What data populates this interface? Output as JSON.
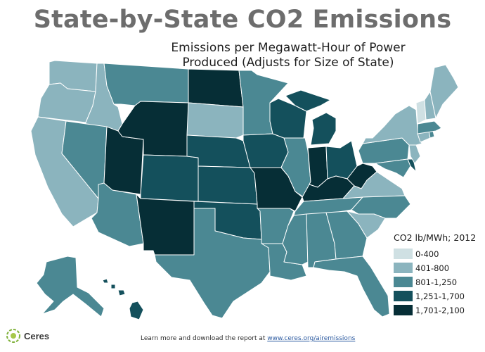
{
  "header": {
    "title": "State-by-State CO2 Emissions",
    "subtitle_line1": "Emissions per Megawatt-Hour of Power",
    "subtitle_line2": "Produced (Adjusts for Size of State)"
  },
  "legend": {
    "title": "CO2 lb/MWh; 2012",
    "items": [
      {
        "label": "0-400",
        "color": "#cfe0e3"
      },
      {
        "label": "401-800",
        "color": "#8bb4be"
      },
      {
        "label": "801-1,250",
        "color": "#4b8893"
      },
      {
        "label": "1,251-1,700",
        "color": "#14505c"
      },
      {
        "label": "1,701-2,100",
        "color": "#062e36"
      }
    ]
  },
  "map": {
    "category_colors": [
      "#cfe0e3",
      "#8bb4be",
      "#4b8893",
      "#14505c",
      "#062e36"
    ],
    "states": {
      "WA": 1,
      "OR": 1,
      "ID": 1,
      "CA": 1,
      "NV": 2,
      "AZ": 2,
      "UT": 4,
      "MT": 2,
      "WY": 4,
      "CO": 3,
      "NM": 4,
      "ND": 4,
      "SD": 1,
      "NE": 3,
      "KS": 3,
      "OK": 3,
      "TX": 2,
      "MN": 2,
      "IA": 3,
      "MO": 4,
      "AR": 2,
      "LA": 2,
      "WI": 3,
      "IL": 2,
      "IN": 4,
      "KY": 4,
      "TN": 2,
      "MS": 2,
      "AL": 2,
      "GA": 2,
      "FL": 2,
      "MI": 3,
      "OH": 3,
      "WV": 4,
      "VA": 1,
      "NC": 2,
      "SC": 1,
      "PA": 2,
      "NY": 1,
      "VT": 0,
      "NH": 1,
      "ME": 1,
      "MA": 2,
      "CT": 1,
      "RI": 2,
      "NJ": 1,
      "DE": 3,
      "MD": 2,
      "AK": 2,
      "HI": 3
    }
  },
  "footer": {
    "text": "Learn more and download the report at ",
    "link": "www.ceres.org/airemissions"
  },
  "logo": {
    "text": "Ceres",
    "icon": "ceres-leaf-logo"
  }
}
